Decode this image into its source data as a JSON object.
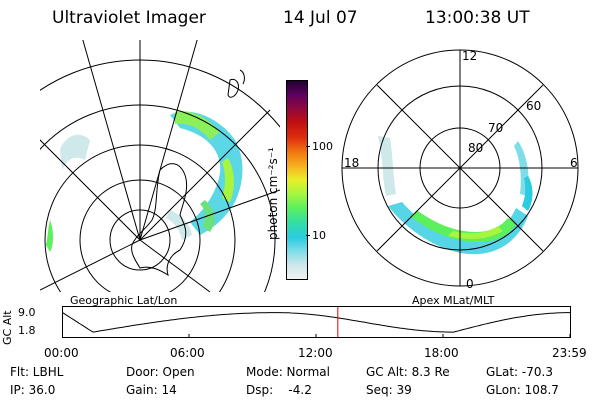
{
  "header": {
    "instrument": "Ultraviolet Imager",
    "date": "14 Jul 07",
    "time": "13:00:38 UT"
  },
  "left_panel": {
    "label": "Geographic Lat/Lon"
  },
  "right_panel": {
    "label": "Apex MLat/MLT",
    "mlt_labels": {
      "top": "12",
      "left": "18",
      "right": "6",
      "bottom": "0"
    },
    "lat_labels": [
      "80",
      "70",
      "60"
    ]
  },
  "colorbar": {
    "unit_label": "photon cm⁻²s⁻¹",
    "ticks": [
      "100",
      "10"
    ],
    "colors": [
      "#f2f2f2",
      "#cfe8ea",
      "#7fdde8",
      "#2bcbe0",
      "#35e0a0",
      "#5cf05c",
      "#a8f540",
      "#e8f028",
      "#f8b020",
      "#f07810",
      "#e03010",
      "#c01010",
      "#900840",
      "#600060",
      "#200030"
    ]
  },
  "altitude_strip": {
    "ylabel": "GC Alt",
    "ytick_top": "9.0",
    "ytick_bottom": "1.8",
    "x_ticks": [
      "00:00",
      "06:00",
      "12:00",
      "18:00",
      "23:59"
    ],
    "current_time_fraction": 0.542
  },
  "info": {
    "row1": {
      "filter": "Flt: LBHL",
      "door": "Door: Open",
      "mode": "Mode: Normal",
      "gc_alt": "GC Alt: 8.3 Re",
      "glat": "GLat: -70.3"
    },
    "row2": {
      "ip": "IP: 36.0",
      "gain": "Gain: 14",
      "dsp": "Dsp:    -4.2",
      "seq": "Seq: 39",
      "glon": "GLon: 108.7"
    }
  }
}
